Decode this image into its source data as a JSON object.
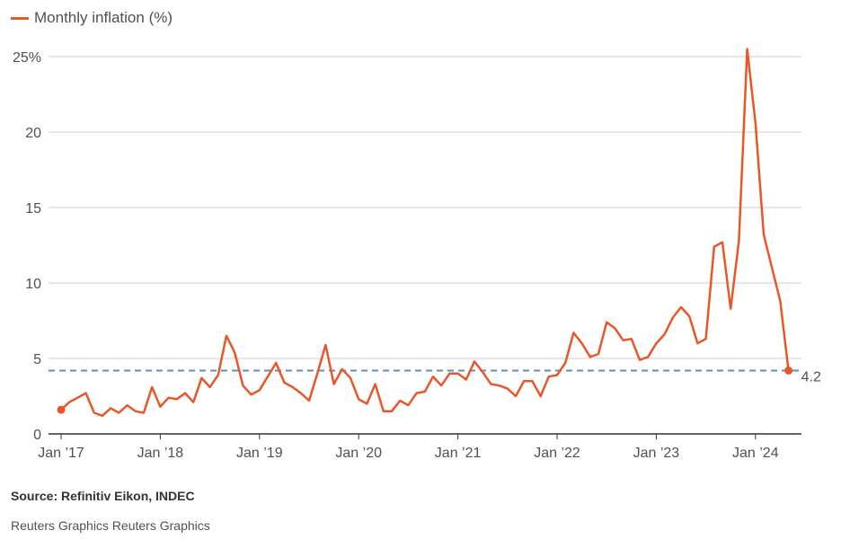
{
  "chart_data": {
    "type": "line",
    "legend": "Monthly inflation (%)",
    "legend_position": "top-left",
    "color": "#e8572a",
    "reference_color": "#5b8ec4",
    "reference_value": 4.2,
    "reference_label": "4.2",
    "ylim": [
      0,
      25
    ],
    "yticks": [
      {
        "value": 0,
        "label": "0"
      },
      {
        "value": 5,
        "label": "5"
      },
      {
        "value": 10,
        "label": "10"
      },
      {
        "value": 15,
        "label": "15"
      },
      {
        "value": 20,
        "label": "20"
      },
      {
        "value": 25,
        "label": "25%"
      }
    ],
    "xticks": [
      {
        "month": 0,
        "label": "Jan ’17"
      },
      {
        "month": 12,
        "label": "Jan ’18"
      },
      {
        "month": 24,
        "label": "Jan ’19"
      },
      {
        "month": 36,
        "label": "Jan ’20"
      },
      {
        "month": 48,
        "label": "Jan ’21"
      },
      {
        "month": 60,
        "label": "Jan ’22"
      },
      {
        "month": 72,
        "label": "Jan ’23"
      },
      {
        "month": 84,
        "label": "Jan ’24"
      }
    ],
    "start": "2017-01",
    "grid": true,
    "values": [
      1.6,
      2.1,
      2.4,
      2.7,
      1.4,
      1.2,
      1.7,
      1.4,
      1.9,
      1.5,
      1.4,
      3.1,
      1.8,
      2.4,
      2.3,
      2.7,
      2.1,
      3.7,
      3.1,
      3.9,
      6.5,
      5.4,
      3.2,
      2.6,
      2.9,
      3.8,
      4.7,
      3.4,
      3.1,
      2.7,
      2.2,
      4.0,
      5.9,
      3.3,
      4.3,
      3.7,
      2.3,
      2.0,
      3.3,
      1.5,
      1.5,
      2.2,
      1.9,
      2.7,
      2.8,
      3.8,
      3.2,
      4.0,
      4.0,
      3.6,
      4.8,
      4.1,
      3.3,
      3.2,
      3.0,
      2.5,
      3.5,
      3.5,
      2.5,
      3.8,
      3.9,
      4.7,
      6.7,
      6.0,
      5.1,
      5.3,
      7.4,
      7.0,
      6.2,
      6.3,
      4.9,
      5.1,
      6.0,
      6.6,
      7.7,
      8.4,
      7.8,
      6.0,
      6.3,
      12.4,
      12.7,
      8.3,
      12.8,
      25.5,
      20.6,
      13.2,
      11.0,
      8.8,
      4.2
    ]
  },
  "source": "Source: Refinitiv Eikon, INDEC",
  "credit": "Reuters Graphics Reuters Graphics"
}
